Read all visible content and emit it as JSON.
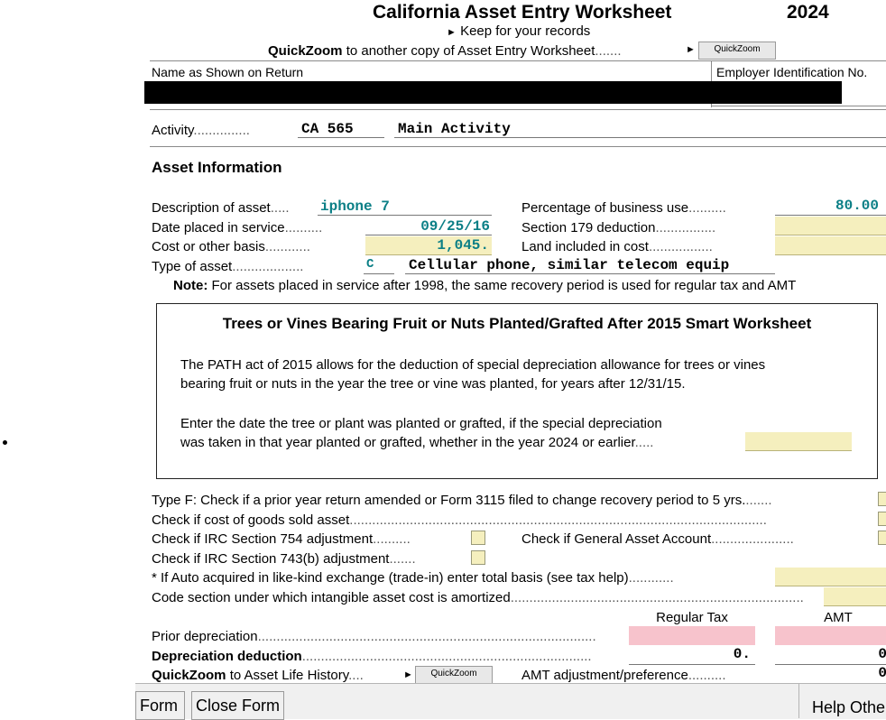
{
  "header": {
    "title": "California Asset Entry Worksheet",
    "year": "2024",
    "keep_records": "Keep for your records",
    "quickzoom_bold": "QuickZoom",
    "quickzoom_text": "to another copy of Asset Entry Worksheet",
    "quickzoom_button": "QuickZoom"
  },
  "name_label": "Name as Shown on Return",
  "ein_label": "Employer Identification No.",
  "activity": {
    "label": "Activity",
    "code": "CA 565",
    "name": "Main Activity"
  },
  "section_title": "Asset Information",
  "asset": {
    "description_label": "Description of asset",
    "description_value": "iphone 7",
    "date_label": "Date placed in service",
    "date_value": "09/25/16",
    "cost_label": "Cost or other basis",
    "cost_value": "1,045.",
    "type_label": "Type of asset",
    "type_code": "C",
    "type_desc": "Cellular phone, similar telecom equip",
    "business_use_label": "Percentage of business use",
    "business_use_value": "80.00",
    "sec179_label": "Section 179 deduction",
    "land_label": "Land included in cost"
  },
  "note": {
    "bold": "Note:",
    "text": "For assets placed in service after 1998, the same recovery period is used for regular tax and AMT"
  },
  "smart_worksheet": {
    "title": "Trees or Vines Bearing Fruit or Nuts Planted/Grafted After 2015 Smart Worksheet",
    "para1_line1": "The PATH act of 2015 allows for the deduction of special depreciation allowance for trees or vines",
    "para1_line2": "bearing fruit or nuts in the year the tree or vine was planted, for years after 12/31/15.",
    "para2_line1": "Enter the date the tree or plant was planted or grafted, if the special depreciation",
    "para2_line2": "was taken in that year planted or grafted, whether in the year 2024 or earlier"
  },
  "checks": {
    "type_f": "Type F: Check if a prior year return amended or Form 3115 filed to change recovery period to 5 yrs.",
    "cogs": "Check if cost of goods sold asset",
    "sec754": "Check if IRC Section 754 adjustment",
    "general_account": "Check if General Asset Account",
    "sec743b": "Check if IRC Section 743(b) adjustment",
    "auto_trade": "* If Auto acquired in like-kind exchange (trade-in) enter total basis (see tax help)",
    "code_section": "Code section under which intangible asset cost is amortized"
  },
  "depreciation": {
    "col_regular": "Regular Tax",
    "col_amt": "AMT",
    "prior_label": "Prior depreciation",
    "deduction_label": "Depreciation deduction",
    "deduction_regular": "0.",
    "deduction_amt": "0",
    "quickzoom_bold": "QuickZoom",
    "quickzoom_text": "to Asset Life History",
    "quickzoom_button": "QuickZoom",
    "amt_adj_label": "AMT adjustment/preference",
    "amt_adj_value": "0"
  },
  "bottom_bar": {
    "form_button": "Form",
    "close_button": "Close Form",
    "help_button": "Help Othe"
  }
}
